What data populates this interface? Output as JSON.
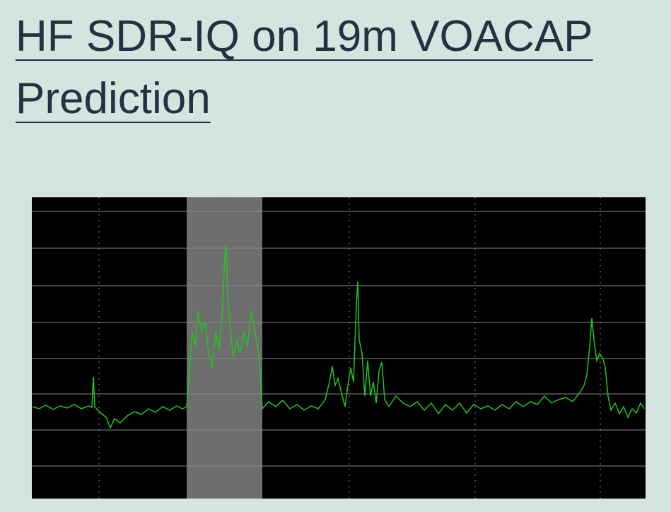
{
  "header": {
    "title": "HF SDR-IQ on 19m VOACAP Prediction"
  }
}
